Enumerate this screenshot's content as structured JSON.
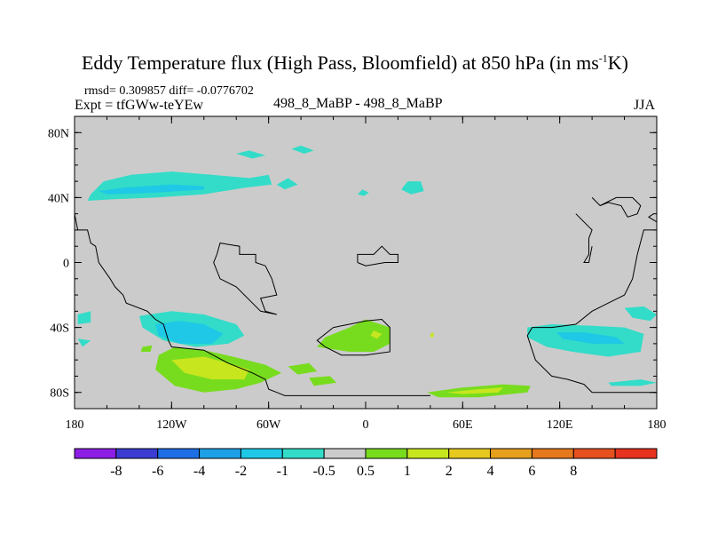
{
  "title_main": "Eddy Temperature flux (High Pass, Bloomfield) at 850 hPa (in ms",
  "title_sup": "-1",
  "title_tail": "K)",
  "stats": "rmsd= 0.309857 diff= -0.0776702",
  "expt": "Expt = tfGWw-teYEw",
  "case": "498_8_MaBP - 498_8_MaBP",
  "season": "JJA",
  "map": {
    "projection": "cylindrical equidistant",
    "lon_range": [
      -180,
      180
    ],
    "lat_range": [
      -90,
      90
    ],
    "background_color": "#cbcbcb",
    "y_ticks": [
      {
        "lat": 80,
        "label": "80N"
      },
      {
        "lat": 40,
        "label": "40N"
      },
      {
        "lat": 0,
        "label": "0"
      },
      {
        "lat": -40,
        "label": "40S"
      },
      {
        "lat": -80,
        "label": "80S"
      }
    ],
    "x_ticks": [
      {
        "lon": -180,
        "label": "180"
      },
      {
        "lon": -120,
        "label": "120W"
      },
      {
        "lon": -60,
        "label": "60W"
      },
      {
        "lon": 0,
        "label": "0"
      },
      {
        "lon": 60,
        "label": "60E"
      },
      {
        "lon": 120,
        "label": "120E"
      },
      {
        "lon": 180,
        "label": "180"
      }
    ]
  },
  "colorbar": {
    "colors": [
      "#8c1ee6",
      "#3c3cd2",
      "#1e6ee6",
      "#1ea0e6",
      "#1ec8e6",
      "#32dcc8",
      "#cbcbcb",
      "#78dc1e",
      "#c8e61e",
      "#e6c81e",
      "#e6a01e",
      "#e6781e",
      "#e6501e",
      "#e6321e"
    ],
    "labels": [
      "-8",
      "-6",
      "-4",
      "-2",
      "-1",
      "-0.5",
      "0.5",
      "1",
      "2",
      "4",
      "6",
      "8"
    ]
  },
  "regions": [
    {
      "id": "np-pacific-cyan",
      "level": "-1",
      "color": "#32dcc8",
      "points": [
        [
          -170,
          42
        ],
        [
          -162,
          50
        ],
        [
          -145,
          54
        ],
        [
          -120,
          56
        ],
        [
          -95,
          54
        ],
        [
          -72,
          52
        ],
        [
          -60,
          54
        ],
        [
          -58,
          48
        ],
        [
          -75,
          46
        ],
        [
          -100,
          42
        ],
        [
          -130,
          40
        ],
        [
          -155,
          39
        ],
        [
          -172,
          38
        ]
      ]
    },
    {
      "id": "np-pacific-blue",
      "level": "-2",
      "color": "#1ec8e6",
      "points": [
        [
          -165,
          44
        ],
        [
          -150,
          46
        ],
        [
          -120,
          48
        ],
        [
          -100,
          47
        ],
        [
          -100,
          45
        ],
        [
          -130,
          43
        ],
        [
          -160,
          42
        ]
      ]
    },
    {
      "id": "np-atlantic-cyan",
      "level": "-1",
      "color": "#32dcc8",
      "points": [
        [
          -55,
          48
        ],
        [
          -48,
          52
        ],
        [
          -42,
          48
        ],
        [
          -50,
          45
        ]
      ]
    },
    {
      "id": "arctic-cyan",
      "level": "-1",
      "color": "#32dcc8",
      "points": [
        [
          -80,
          67
        ],
        [
          -72,
          69
        ],
        [
          -62,
          66
        ],
        [
          -70,
          64
        ]
      ]
    },
    {
      "id": "arctic-cyan-2",
      "level": "-1",
      "color": "#32dcc8",
      "points": [
        [
          -46,
          70
        ],
        [
          -40,
          72
        ],
        [
          -32,
          69
        ],
        [
          -38,
          67
        ]
      ]
    },
    {
      "id": "europe-cyan",
      "level": "-1",
      "color": "#32dcc8",
      "points": [
        [
          -5,
          42
        ],
        [
          -2,
          45
        ],
        [
          2,
          43
        ],
        [
          -1,
          41
        ]
      ]
    },
    {
      "id": "asia-cyan",
      "level": "-1",
      "color": "#32dcc8",
      "points": [
        [
          22,
          45
        ],
        [
          26,
          50
        ],
        [
          34,
          50
        ],
        [
          36,
          44
        ],
        [
          28,
          42
        ]
      ]
    },
    {
      "id": "sp-pacific-cyan",
      "level": "-1",
      "color": "#32dcc8",
      "points": [
        [
          -178,
          -32
        ],
        [
          -170,
          -30
        ],
        [
          -170,
          -37
        ],
        [
          -178,
          -38
        ]
      ]
    },
    {
      "id": "sp-pacific-cyan-2",
      "level": "-1",
      "color": "#32dcc8",
      "points": [
        [
          -178,
          -47
        ],
        [
          -170,
          -48
        ],
        [
          -175,
          -52
        ]
      ]
    },
    {
      "id": "sp-pacific-cyan-3",
      "level": "-1",
      "color": "#32dcc8",
      "points": [
        [
          -140,
          -33
        ],
        [
          -120,
          -30
        ],
        [
          -100,
          -32
        ],
        [
          -80,
          -38
        ],
        [
          -75,
          -45
        ],
        [
          -85,
          -50
        ],
        [
          -105,
          -52
        ],
        [
          -125,
          -48
        ],
        [
          -138,
          -40
        ]
      ]
    },
    {
      "id": "sp-pacific-blue",
      "level": "-2",
      "color": "#1ec8e6",
      "points": [
        [
          -130,
          -38
        ],
        [
          -115,
          -36
        ],
        [
          -100,
          -38
        ],
        [
          -88,
          -44
        ],
        [
          -95,
          -50
        ],
        [
          -115,
          -50
        ],
        [
          -128,
          -45
        ]
      ]
    },
    {
      "id": "sp-green-1",
      "level": "1",
      "color": "#78dc1e",
      "points": [
        [
          -128,
          -57
        ],
        [
          -118,
          -52
        ],
        [
          -100,
          -54
        ],
        [
          -82,
          -58
        ],
        [
          -62,
          -63
        ],
        [
          -52,
          -68
        ],
        [
          -65,
          -74
        ],
        [
          -80,
          -78
        ],
        [
          -100,
          -80
        ],
        [
          -118,
          -76
        ],
        [
          -130,
          -66
        ]
      ]
    },
    {
      "id": "sp-yellow-1",
      "level": "2",
      "color": "#c8e61e",
      "points": [
        [
          -120,
          -60
        ],
        [
          -100,
          -58
        ],
        [
          -85,
          -62
        ],
        [
          -72,
          -66
        ],
        [
          -75,
          -72
        ],
        [
          -95,
          -72
        ],
        [
          -112,
          -68
        ]
      ]
    },
    {
      "id": "sp-green-tail",
      "level": "1",
      "color": "#78dc1e",
      "points": [
        [
          -48,
          -64
        ],
        [
          -35,
          -62
        ],
        [
          -30,
          -67
        ],
        [
          -42,
          -69
        ]
      ]
    },
    {
      "id": "sp-green-dot",
      "level": "1",
      "color": "#78dc1e",
      "points": [
        [
          -138,
          -52
        ],
        [
          -132,
          -51
        ],
        [
          -133,
          -55
        ],
        [
          -139,
          -55
        ]
      ]
    },
    {
      "id": "atlantic-green",
      "level": "1",
      "color": "#78dc1e",
      "points": [
        [
          -10,
          -40
        ],
        [
          0,
          -35
        ],
        [
          15,
          -40
        ],
        [
          15,
          -50
        ],
        [
          5,
          -55
        ],
        [
          -10,
          -55
        ],
        [
          -30,
          -52
        ],
        [
          -25,
          -46
        ]
      ]
    },
    {
      "id": "atlantic-yellow",
      "level": "2",
      "color": "#c8e61e",
      "points": [
        [
          5,
          -42
        ],
        [
          10,
          -44
        ],
        [
          7,
          -47
        ],
        [
          3,
          -45
        ]
      ]
    },
    {
      "id": "atlantic-yellow-2",
      "level": "2",
      "color": "#c8e61e",
      "points": [
        [
          40,
          -44
        ],
        [
          42,
          -43
        ],
        [
          42,
          -46
        ],
        [
          40,
          -46
        ]
      ]
    },
    {
      "id": "green-small",
      "level": "1",
      "color": "#78dc1e",
      "points": [
        [
          -35,
          -71
        ],
        [
          -22,
          -70
        ],
        [
          -18,
          -74
        ],
        [
          -32,
          -76
        ]
      ]
    },
    {
      "id": "indian-green",
      "level": "1",
      "color": "#78dc1e",
      "points": [
        [
          38,
          -80
        ],
        [
          60,
          -77
        ],
        [
          85,
          -75
        ],
        [
          102,
          -76
        ],
        [
          100,
          -80
        ],
        [
          70,
          -83
        ],
        [
          45,
          -83
        ]
      ]
    },
    {
      "id": "indian-yellow",
      "level": "2",
      "color": "#c8e61e",
      "points": [
        [
          50,
          -80
        ],
        [
          70,
          -78
        ],
        [
          85,
          -77
        ],
        [
          82,
          -80
        ],
        [
          60,
          -81
        ]
      ]
    },
    {
      "id": "indian-cyan",
      "level": "-1",
      "color": "#32dcc8",
      "points": [
        [
          100,
          -40
        ],
        [
          115,
          -38
        ],
        [
          140,
          -39
        ],
        [
          160,
          -40
        ],
        [
          172,
          -44
        ],
        [
          170,
          -55
        ],
        [
          150,
          -58
        ],
        [
          128,
          -55
        ],
        [
          112,
          -52
        ],
        [
          100,
          -46
        ]
      ]
    },
    {
      "id": "indian-blue",
      "level": "-2",
      "color": "#1ec8e6",
      "points": [
        [
          118,
          -43
        ],
        [
          135,
          -43
        ],
        [
          155,
          -46
        ],
        [
          160,
          -50
        ],
        [
          140,
          -50
        ],
        [
          122,
          -47
        ]
      ]
    },
    {
      "id": "aus-cyan",
      "level": "-1",
      "color": "#32dcc8",
      "points": [
        [
          160,
          -28
        ],
        [
          172,
          -27
        ],
        [
          180,
          -32
        ],
        [
          176,
          -36
        ],
        [
          165,
          -34
        ]
      ]
    },
    {
      "id": "se-cyan",
      "level": "-1",
      "color": "#32dcc8",
      "points": [
        [
          150,
          -74
        ],
        [
          170,
          -72
        ],
        [
          180,
          -74
        ],
        [
          170,
          -76
        ],
        [
          152,
          -76
        ]
      ]
    }
  ],
  "coastlines": [
    {
      "id": "americas-west",
      "points": [
        [
          -180,
          30
        ],
        [
          -178,
          20
        ],
        [
          -172,
          20
        ],
        [
          -170,
          12
        ],
        [
          -167,
          10
        ],
        [
          -165,
          0
        ],
        [
          -158,
          -10
        ],
        [
          -155,
          -15
        ],
        [
          -150,
          -20
        ],
        [
          -148,
          -25
        ],
        [
          -135,
          -30
        ],
        [
          -130,
          -35
        ],
        [
          -125,
          -38
        ],
        [
          -122,
          -48
        ],
        [
          -120,
          -52
        ],
        [
          -100,
          -54
        ],
        [
          -85,
          -62
        ],
        [
          -70,
          -68
        ],
        [
          -62,
          -72
        ],
        [
          -60,
          -78
        ],
        [
          -55,
          -80
        ],
        [
          -50,
          -82
        ],
        [
          0,
          -82
        ],
        [
          40,
          -82
        ]
      ]
    },
    {
      "id": "s-america-east",
      "points": [
        [
          -62,
          -2
        ],
        [
          -68,
          0
        ],
        [
          -68,
          5
        ],
        [
          -78,
          5
        ],
        [
          -78,
          10
        ],
        [
          -90,
          12
        ],
        [
          -92,
          5
        ],
        [
          -94,
          0
        ],
        [
          -90,
          -10
        ],
        [
          -80,
          -15
        ],
        [
          -65,
          -30
        ],
        [
          -55,
          -32
        ],
        [
          -62,
          -30
        ],
        [
          -65,
          -22
        ],
        [
          -55,
          -20
        ],
        [
          -58,
          -10
        ],
        [
          -62,
          -2
        ]
      ]
    },
    {
      "id": "africa-sw",
      "points": [
        [
          -20,
          -40
        ],
        [
          -10,
          -38
        ],
        [
          0,
          -36
        ],
        [
          10,
          -35
        ],
        [
          15,
          -40
        ],
        [
          15,
          -55
        ],
        [
          0,
          -57
        ],
        [
          -15,
          -57
        ],
        [
          -25,
          -52
        ],
        [
          -30,
          -48
        ],
        [
          -20,
          -40
        ]
      ]
    },
    {
      "id": "africa-w",
      "points": [
        [
          -5,
          0
        ],
        [
          -5,
          5
        ],
        [
          5,
          5
        ],
        [
          10,
          10
        ],
        [
          15,
          5
        ],
        [
          20,
          5
        ],
        [
          20,
          0
        ],
        [
          12,
          0
        ],
        [
          0,
          -2
        ],
        [
          -5,
          0
        ]
      ]
    },
    {
      "id": "australia-sw",
      "points": [
        [
          180,
          -80
        ],
        [
          160,
          -80
        ],
        [
          140,
          -80
        ],
        [
          135,
          -75
        ],
        [
          125,
          -72
        ],
        [
          115,
          -70
        ],
        [
          105,
          -60
        ],
        [
          100,
          -45
        ],
        [
          103,
          -40
        ],
        [
          115,
          -40
        ],
        [
          130,
          -38
        ],
        [
          140,
          -30
        ],
        [
          150,
          -25
        ],
        [
          160,
          -20
        ],
        [
          165,
          -10
        ],
        [
          168,
          5
        ],
        [
          172,
          20
        ],
        [
          180,
          20
        ]
      ]
    },
    {
      "id": "asia-east",
      "points": [
        [
          140,
          40
        ],
        [
          145,
          35
        ],
        [
          155,
          40
        ],
        [
          165,
          40
        ],
        [
          170,
          35
        ],
        [
          168,
          30
        ],
        [
          162,
          28
        ],
        [
          158,
          35
        ],
        [
          150,
          37
        ],
        [
          145,
          35
        ]
      ]
    },
    {
      "id": "asia-south",
      "points": [
        [
          130,
          30
        ],
        [
          138,
          22
        ],
        [
          140,
          20
        ],
        [
          138,
          15
        ],
        [
          138,
          5
        ],
        [
          135,
          0
        ],
        [
          138,
          0
        ],
        [
          140,
          10
        ]
      ]
    },
    {
      "id": "greenland",
      "points": [
        [
          180,
          25
        ],
        [
          175,
          28
        ],
        [
          178,
          30
        ]
      ]
    }
  ]
}
